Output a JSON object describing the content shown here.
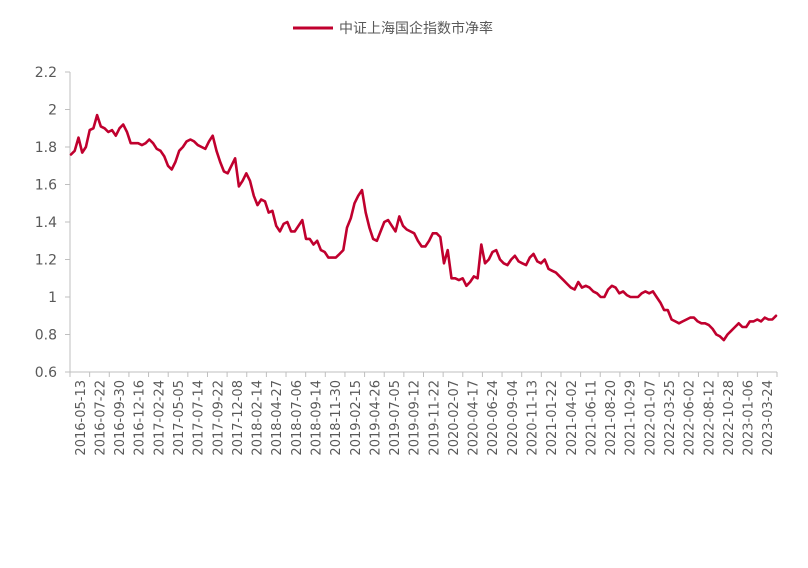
{
  "chart_data": {
    "type": "line",
    "title": "",
    "xlabel": "",
    "ylabel": "",
    "ylim": [
      0.6,
      2.2
    ],
    "yticks": [
      "0.6",
      "0.8",
      "1",
      "1.2",
      "1.4",
      "1.6",
      "1.8",
      "2",
      "2.2"
    ],
    "xticks": [
      "2016-05-13",
      "2016-07-22",
      "2016-09-30",
      "2016-12-16",
      "2017-02-24",
      "2017-05-05",
      "2017-07-14",
      "2017-09-22",
      "2017-12-08",
      "2018-02-14",
      "2018-04-27",
      "2018-07-06",
      "2018-09-14",
      "2018-11-30",
      "2019-02-15",
      "2019-04-26",
      "2019-07-05",
      "2019-09-12",
      "2019-11-22",
      "2020-02-07",
      "2020-04-17",
      "2020-06-24",
      "2020-09-04",
      "2020-11-13",
      "2021-01-22",
      "2021-04-02",
      "2021-06-11",
      "2021-08-20",
      "2021-10-29",
      "2022-01-07",
      "2022-03-25",
      "2022-06-02",
      "2022-08-12",
      "2022-10-28",
      "2023-01-06",
      "2023-03-24"
    ],
    "grid": false,
    "legend_position": "top-center",
    "line_color": "#C0002E",
    "series": [
      {
        "name": "中证上海国企指数市净率",
        "values": [
          1.76,
          1.78,
          1.85,
          1.77,
          1.8,
          1.89,
          1.9,
          1.97,
          1.91,
          1.9,
          1.88,
          1.89,
          1.86,
          1.9,
          1.92,
          1.88,
          1.82,
          1.82,
          1.82,
          1.81,
          1.82,
          1.84,
          1.82,
          1.79,
          1.78,
          1.75,
          1.7,
          1.68,
          1.72,
          1.78,
          1.8,
          1.83,
          1.84,
          1.83,
          1.81,
          1.8,
          1.79,
          1.83,
          1.86,
          1.78,
          1.72,
          1.67,
          1.66,
          1.7,
          1.74,
          1.59,
          1.62,
          1.66,
          1.62,
          1.54,
          1.49,
          1.52,
          1.51,
          1.45,
          1.46,
          1.38,
          1.35,
          1.39,
          1.4,
          1.35,
          1.35,
          1.38,
          1.41,
          1.31,
          1.31,
          1.28,
          1.3,
          1.25,
          1.24,
          1.21,
          1.21,
          1.21,
          1.23,
          1.25,
          1.37,
          1.42,
          1.5,
          1.54,
          1.57,
          1.45,
          1.37,
          1.31,
          1.3,
          1.35,
          1.4,
          1.41,
          1.38,
          1.35,
          1.43,
          1.38,
          1.36,
          1.35,
          1.34,
          1.3,
          1.27,
          1.27,
          1.3,
          1.34,
          1.34,
          1.32,
          1.18,
          1.25,
          1.1,
          1.1,
          1.09,
          1.1,
          1.06,
          1.08,
          1.11,
          1.1,
          1.28,
          1.18,
          1.2,
          1.24,
          1.25,
          1.2,
          1.18,
          1.17,
          1.2,
          1.22,
          1.19,
          1.18,
          1.17,
          1.21,
          1.23,
          1.19,
          1.18,
          1.2,
          1.15,
          1.14,
          1.13,
          1.11,
          1.09,
          1.07,
          1.05,
          1.04,
          1.08,
          1.05,
          1.06,
          1.05,
          1.03,
          1.02,
          1.0,
          1.0,
          1.04,
          1.06,
          1.05,
          1.02,
          1.03,
          1.01,
          1.0,
          1.0,
          1.0,
          1.02,
          1.03,
          1.02,
          1.03,
          1.0,
          0.97,
          0.93,
          0.93,
          0.88,
          0.87,
          0.86,
          0.87,
          0.88,
          0.89,
          0.89,
          0.87,
          0.86,
          0.86,
          0.85,
          0.83,
          0.8,
          0.79,
          0.77,
          0.8,
          0.82,
          0.84,
          0.86,
          0.84,
          0.84,
          0.87,
          0.87,
          0.88,
          0.87,
          0.89,
          0.88,
          0.88,
          0.9
        ]
      }
    ]
  }
}
